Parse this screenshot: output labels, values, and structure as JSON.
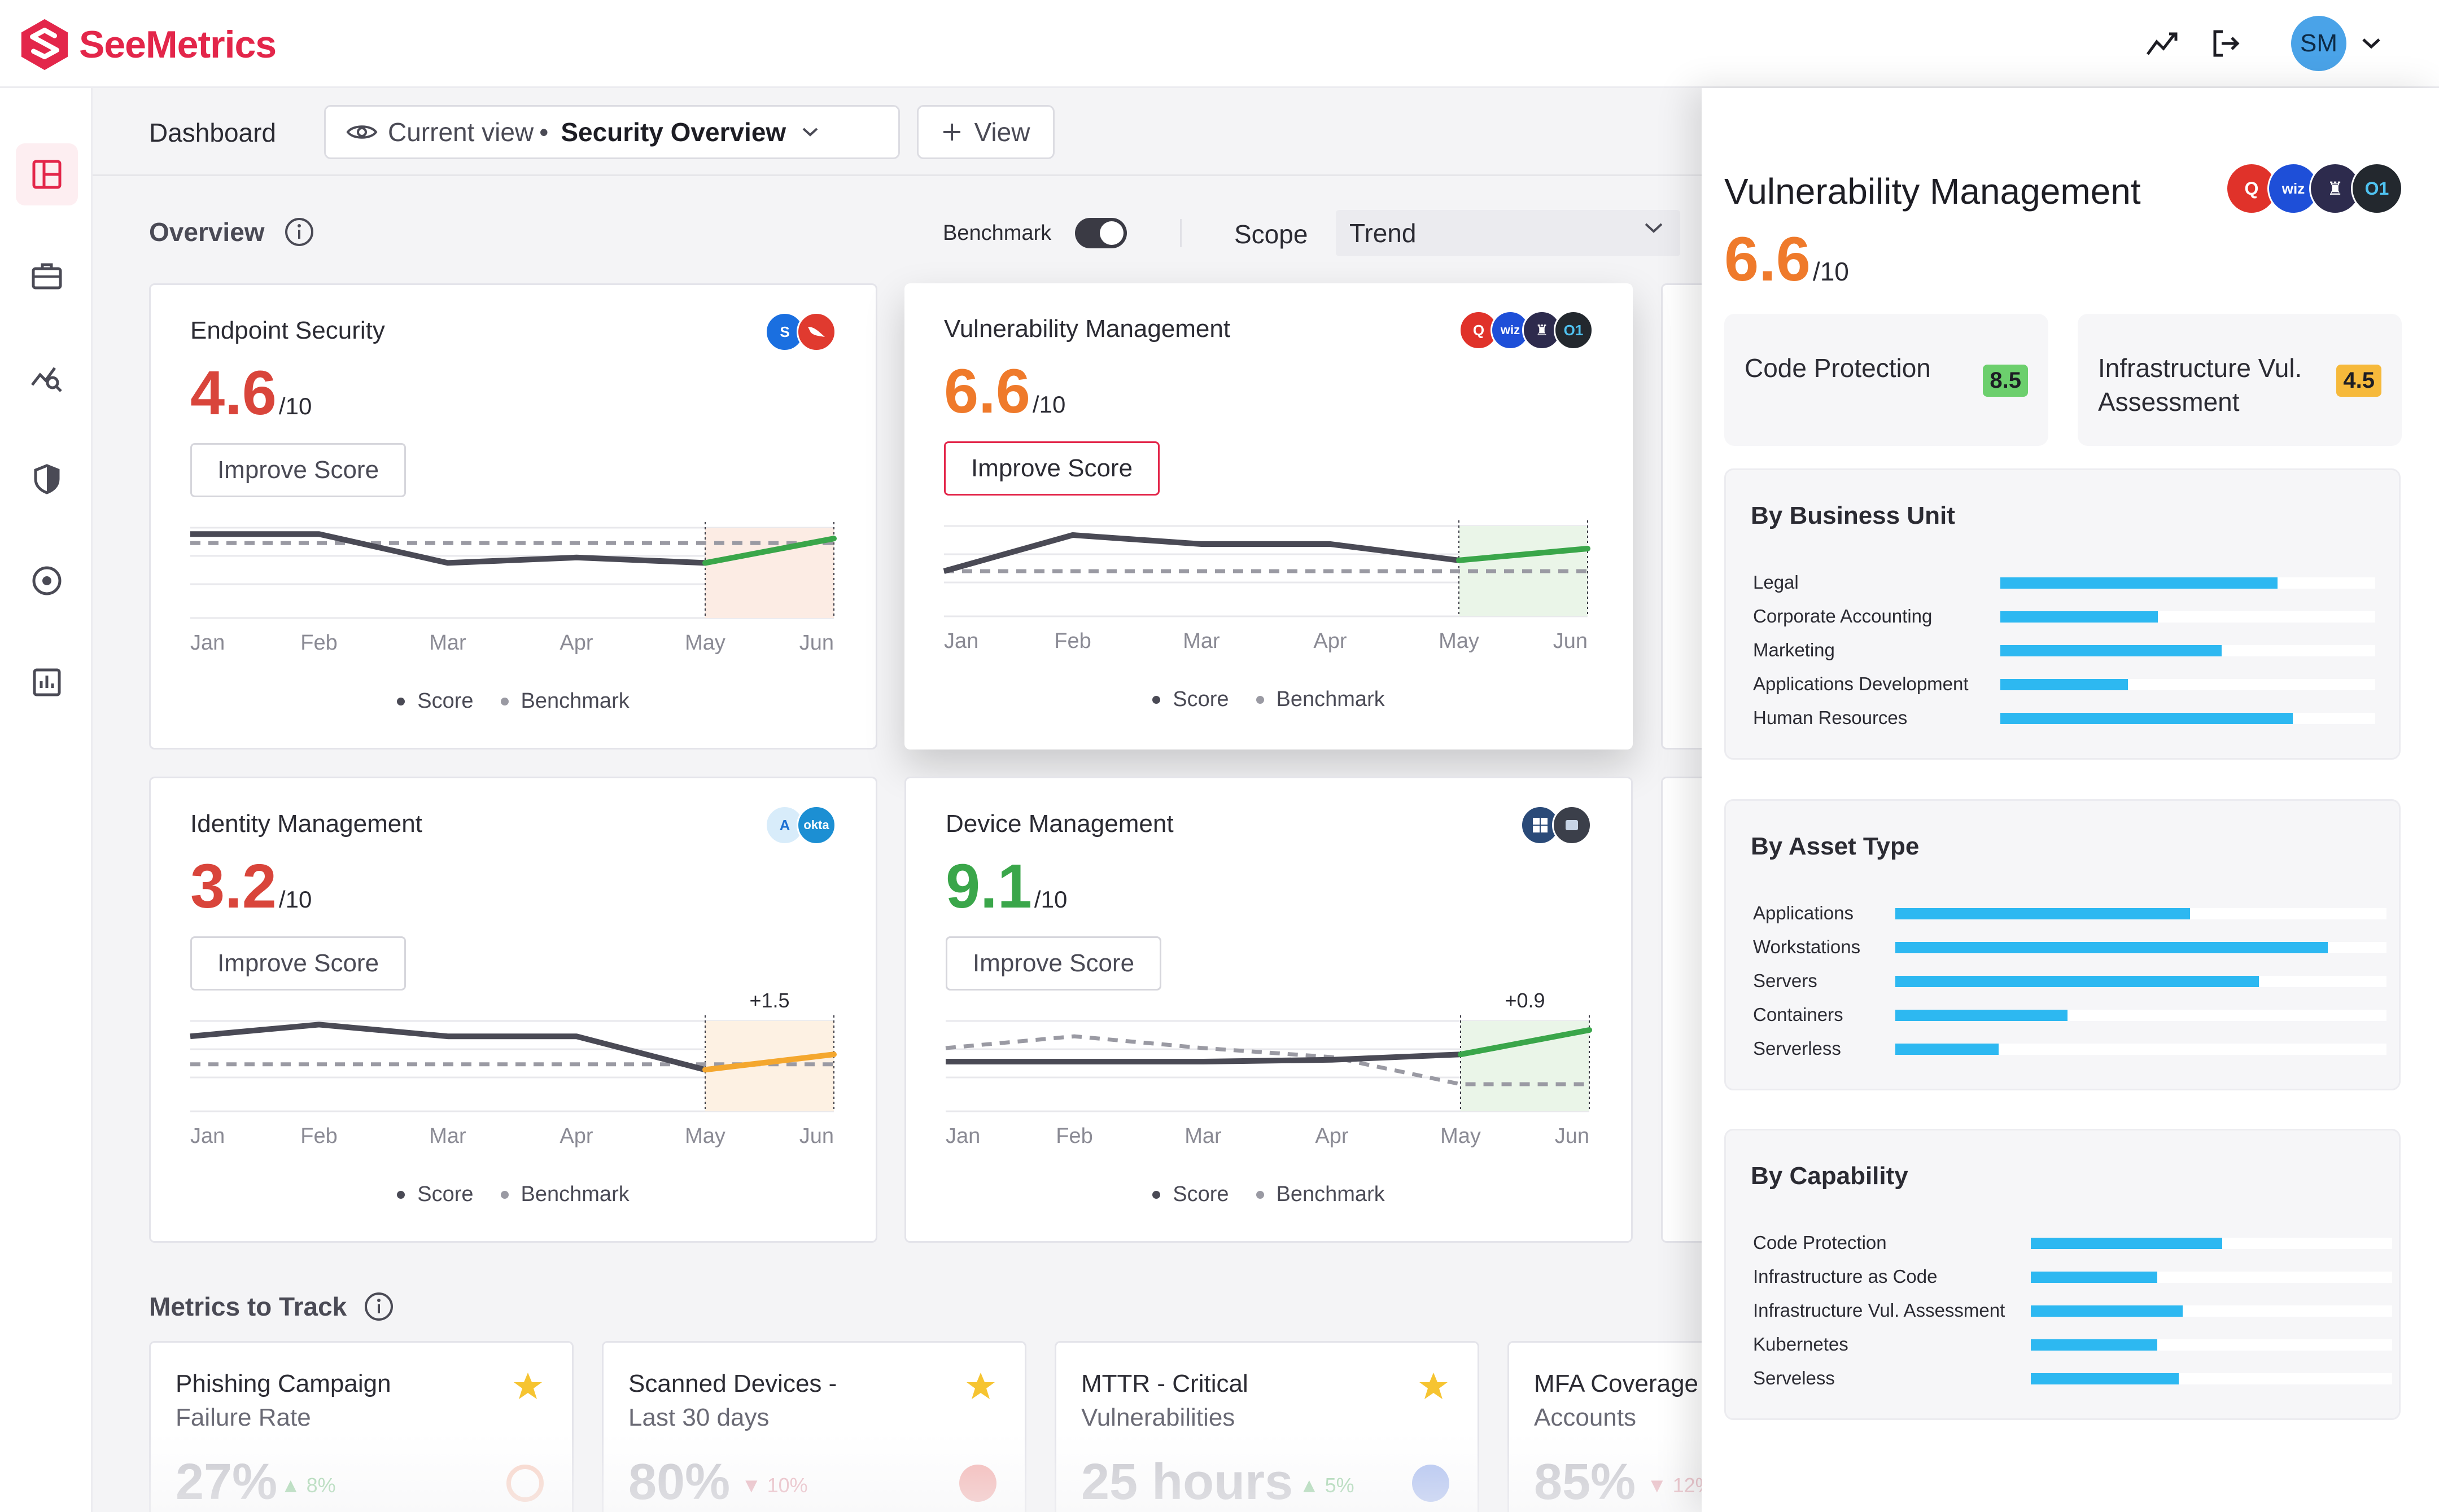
{
  "app": {
    "name": "SeeMetrics",
    "user_initials": "SM"
  },
  "subheader": {
    "crumb": "Dashboard",
    "view_prefix": "Current view",
    "view_name": "Security Overview",
    "add_view": "View"
  },
  "overview": {
    "title": "Overview",
    "benchmark_label": "Benchmark",
    "benchmark_on": true,
    "scope_label": "Scope",
    "scope_value": "Trend"
  },
  "legend": {
    "score": "Score",
    "benchmark": "Benchmark"
  },
  "months": [
    "Jan",
    "Feb",
    "Mar",
    "Apr",
    "May",
    "Jun"
  ],
  "cards": [
    {
      "title": "Endpoint Security",
      "score": "4.6",
      "out_of": "/10",
      "score_color": "#d9453b",
      "improve": "Improve Score",
      "highlight_button": false,
      "score_series": [
        9.3,
        9.3,
        6.1,
        6.7,
        6.1,
        8.8
      ],
      "benchmark_series": [
        8.3,
        8.3,
        8.3,
        8.3,
        8.3,
        8.3
      ],
      "trend_color": "#3aa64a",
      "trend_fill": "#fcece4",
      "delta": "",
      "tools": [
        {
          "name": "sentinelone-icon",
          "color": "#1a6fe0",
          "label": "S"
        },
        {
          "name": "crowdstrike-icon",
          "color": "#e03a2f",
          "label": ""
        }
      ]
    },
    {
      "title": "Vulnerability Management",
      "score": "6.6",
      "out_of": "/10",
      "score_color": "#ef7a2b",
      "improve": "Improve Score",
      "highlight_button": true,
      "score_series": [
        5.0,
        9.0,
        8.0,
        8.0,
        6.2,
        7.5
      ],
      "benchmark_series": [
        5.0,
        5.0,
        5.0,
        5.0,
        5.0,
        5.0
      ],
      "trend_color": "#3aa64a",
      "trend_fill": "#eaf5e8",
      "delta": "",
      "tools": [
        {
          "name": "qualys-icon",
          "color": "#e0322a",
          "label": "Q"
        },
        {
          "name": "wiz-icon",
          "color": "#1e4fd8",
          "label": "wiz"
        },
        {
          "name": "tool-icon",
          "color": "#2d2b4d",
          "label": ""
        },
        {
          "name": "orca-icon",
          "color": "#23282e",
          "label": "O1"
        }
      ]
    },
    {
      "title": "Identity Management",
      "score": "3.2",
      "out_of": "/10",
      "score_color": "#d9453b",
      "improve": "Improve Score",
      "highlight_button": false,
      "score_series": [
        8.3,
        9.6,
        8.3,
        8.3,
        4.6,
        6.3
      ],
      "benchmark_series": [
        5.2,
        5.2,
        5.2,
        5.2,
        5.2,
        5.2
      ],
      "trend_color": "#f4a72e",
      "trend_fill": "#fdf1e3",
      "delta": "+1.5",
      "tools": [
        {
          "name": "azure-ad-icon",
          "color": "#d8ecfa",
          "label": "A"
        },
        {
          "name": "okta-icon",
          "color": "#1c8fd3",
          "label": "okta"
        }
      ]
    },
    {
      "title": "Device Management",
      "score": "9.1",
      "out_of": "/10",
      "score_color": "#3aa64a",
      "improve": "Improve Score",
      "highlight_button": false,
      "score_series": [
        5.5,
        5.5,
        5.5,
        5.7,
        6.3,
        9.0
      ],
      "benchmark_series": [
        7.0,
        8.3,
        7.0,
        6.0,
        3.0,
        3.0
      ],
      "trend_color": "#3aa64a",
      "trend_fill": "#eaf5e8",
      "delta": "+0.9",
      "tools": [
        {
          "name": "windows-icon",
          "color": "#2a4a78",
          "label": ""
        },
        {
          "name": "intune-icon",
          "color": "#3b3f4a",
          "label": ""
        }
      ]
    }
  ],
  "metrics": {
    "title": "Metrics to Track",
    "items": [
      {
        "line1": "Phishing Campaign",
        "line2": "Failure Rate",
        "value": "27%",
        "delta": "8%",
        "dir": "up",
        "icon": "target-icon",
        "icon_color": "#f08a63"
      },
      {
        "line1": "Scanned Devices -",
        "line2": "Last 30 days",
        "value": "80%",
        "delta": "10%",
        "dir": "down",
        "icon": "qualys-icon",
        "icon_color": "#e0322a"
      },
      {
        "line1": "MTTR - Critical",
        "line2": "Vulnerabilities",
        "value": "25 hours",
        "delta": "5%",
        "dir": "up",
        "icon": "wiz-icon",
        "icon_color": "#1e4fd8"
      },
      {
        "line1": "MFA Coverage",
        "line2": "Accounts",
        "value": "85%",
        "delta": "12%",
        "dir": "down",
        "icon": "",
        "icon_color": ""
      }
    ]
  },
  "panel": {
    "title": "Vulnerability Management",
    "score": "6.6",
    "out_of": "/10",
    "subscores": [
      {
        "name": "Code Protection",
        "value": "8.5",
        "color": "#6ccf6d"
      },
      {
        "name": "Infrastructure Vul. Assessment",
        "value": "4.5",
        "color": "#f6b93b"
      }
    ],
    "sections": [
      {
        "title": "By Business Unit",
        "items": [
          {
            "label": "Legal",
            "value": 0.74
          },
          {
            "label": "Corporate Accounting",
            "value": 0.42
          },
          {
            "label": "Marketing",
            "value": 0.59
          },
          {
            "label": "Applications Development",
            "value": 0.34
          },
          {
            "label": "Human Resources",
            "value": 0.78
          }
        ]
      },
      {
        "title": "By Asset Type",
        "items": [
          {
            "label": "Applications",
            "value": 0.6
          },
          {
            "label": "Workstations",
            "value": 0.88
          },
          {
            "label": "Servers",
            "value": 0.74
          },
          {
            "label": "Containers",
            "value": 0.35
          },
          {
            "label": "Serverless",
            "value": 0.21
          }
        ]
      },
      {
        "title": "By Capability",
        "items": [
          {
            "label": "Code Protection",
            "value": 0.53
          },
          {
            "label": "Infrastructure as Code",
            "value": 0.35
          },
          {
            "label": "Infrastructure Vul. Assessment",
            "value": 0.42
          },
          {
            "label": "Kubernetes",
            "value": 0.35
          },
          {
            "label": "Serveless",
            "value": 0.41
          }
        ]
      }
    ]
  }
}
